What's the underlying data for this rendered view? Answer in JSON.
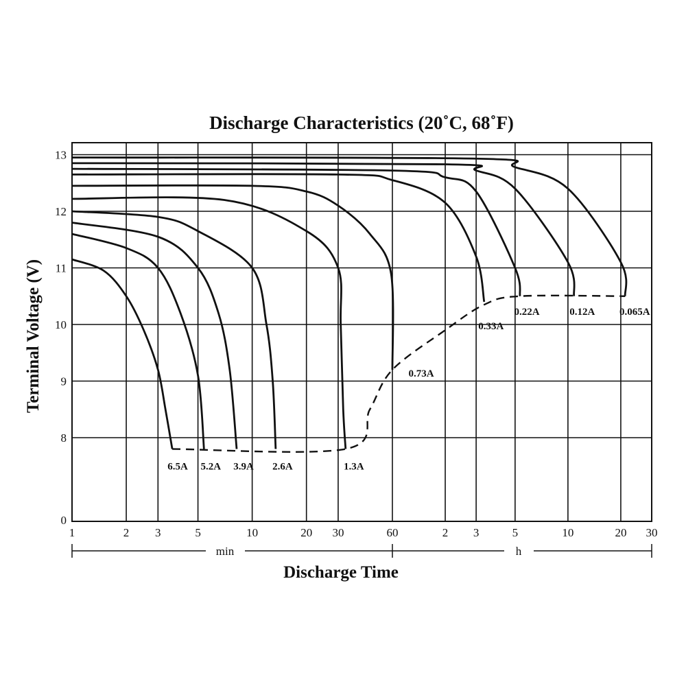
{
  "chart_data": {
    "type": "line",
    "title": "Discharge Characteristics (20˚C, 68˚F)",
    "xlabel": "Discharge Time",
    "ylabel": "Terminal Voltage (V)",
    "x_scale": "log",
    "x_units": [
      "min",
      "h"
    ],
    "x_ticks": [
      {
        "label": "1",
        "minutes": 1
      },
      {
        "label": "2",
        "minutes": 2
      },
      {
        "label": "3",
        "minutes": 3
      },
      {
        "label": "5",
        "minutes": 5
      },
      {
        "label": "10",
        "minutes": 10
      },
      {
        "label": "20",
        "minutes": 20
      },
      {
        "label": "30",
        "minutes": 30
      },
      {
        "label": "60",
        "minutes": 60
      },
      {
        "label": "2",
        "minutes": 120
      },
      {
        "label": "3",
        "minutes": 180
      },
      {
        "label": "5",
        "minutes": 300
      },
      {
        "label": "10",
        "minutes": 600
      },
      {
        "label": "20",
        "minutes": 1200
      },
      {
        "label": "30",
        "minutes": 1800
      }
    ],
    "y_ticks": [
      "13",
      "12",
      "11",
      "10",
      "9",
      "8",
      "0"
    ],
    "y_tick_values": [
      13,
      12,
      11,
      10,
      9,
      8,
      6.5
    ],
    "grid": true,
    "line_color": "#111111",
    "series": [
      {
        "name": "6.5A",
        "points": [
          [
            1,
            11.15
          ],
          [
            1.5,
            10.95
          ],
          [
            2,
            10.5
          ],
          [
            2.5,
            9.9
          ],
          [
            3,
            9.2
          ],
          [
            3.3,
            8.5
          ],
          [
            3.6,
            7.8
          ]
        ]
      },
      {
        "name": "5.2A",
        "points": [
          [
            1,
            11.6
          ],
          [
            2,
            11.35
          ],
          [
            3,
            11.0
          ],
          [
            4,
            10.2
          ],
          [
            5,
            9.1
          ],
          [
            5.4,
            7.8
          ]
        ]
      },
      {
        "name": "3.9A",
        "points": [
          [
            1,
            11.8
          ],
          [
            3,
            11.55
          ],
          [
            5,
            11.0
          ],
          [
            6.5,
            10.2
          ],
          [
            7.5,
            9.2
          ],
          [
            8.2,
            7.8
          ]
        ]
      },
      {
        "name": "2.6A",
        "points": [
          [
            1,
            12.0
          ],
          [
            3,
            11.9
          ],
          [
            5,
            11.65
          ],
          [
            10,
            11.0
          ],
          [
            12,
            10.0
          ],
          [
            13,
            9.0
          ],
          [
            13.5,
            7.8
          ]
        ]
      },
      {
        "name": "1.3A",
        "points": [
          [
            1,
            12.22
          ],
          [
            7,
            12.2
          ],
          [
            20,
            11.65
          ],
          [
            30,
            11.0
          ],
          [
            31,
            10.0
          ],
          [
            32,
            8.5
          ],
          [
            33,
            7.8
          ]
        ]
      },
      {
        "name": "0.73A",
        "points": [
          [
            1,
            12.45
          ],
          [
            10,
            12.45
          ],
          [
            20,
            12.35
          ],
          [
            30,
            12.1
          ],
          [
            45,
            11.6
          ],
          [
            59,
            10.9
          ],
          [
            60,
            9.2
          ]
        ]
      },
      {
        "name": "0.33A",
        "points": [
          [
            1,
            12.65
          ],
          [
            30,
            12.65
          ],
          [
            60,
            12.55
          ],
          [
            120,
            12.15
          ],
          [
            180,
            11.2
          ],
          [
            200,
            10.4
          ]
        ]
      },
      {
        "name": "0.22A",
        "points": [
          [
            1,
            12.75
          ],
          [
            60,
            12.72
          ],
          [
            120,
            12.6
          ],
          [
            180,
            12.35
          ],
          [
            300,
            11.0
          ],
          [
            320,
            10.5
          ]
        ]
      },
      {
        "name": "0.12A",
        "points": [
          [
            1,
            12.85
          ],
          [
            120,
            12.83
          ],
          [
            180,
            12.72
          ],
          [
            300,
            12.4
          ],
          [
            600,
            11.1
          ],
          [
            650,
            10.5
          ]
        ]
      },
      {
        "name": "0.065A",
        "points": [
          [
            1,
            12.95
          ],
          [
            180,
            12.93
          ],
          [
            300,
            12.78
          ],
          [
            600,
            12.4
          ],
          [
            1200,
            11.1
          ],
          [
            1270,
            10.5
          ]
        ]
      }
    ],
    "cutoff_line": {
      "style": "dashed",
      "points": [
        [
          3.6,
          7.8
        ],
        [
          33,
          7.8
        ],
        [
          45,
          8.5
        ],
        [
          60,
          9.2
        ],
        [
          120,
          9.9
        ],
        [
          200,
          10.35
        ],
        [
          320,
          10.5
        ],
        [
          1270,
          10.5
        ]
      ]
    }
  }
}
